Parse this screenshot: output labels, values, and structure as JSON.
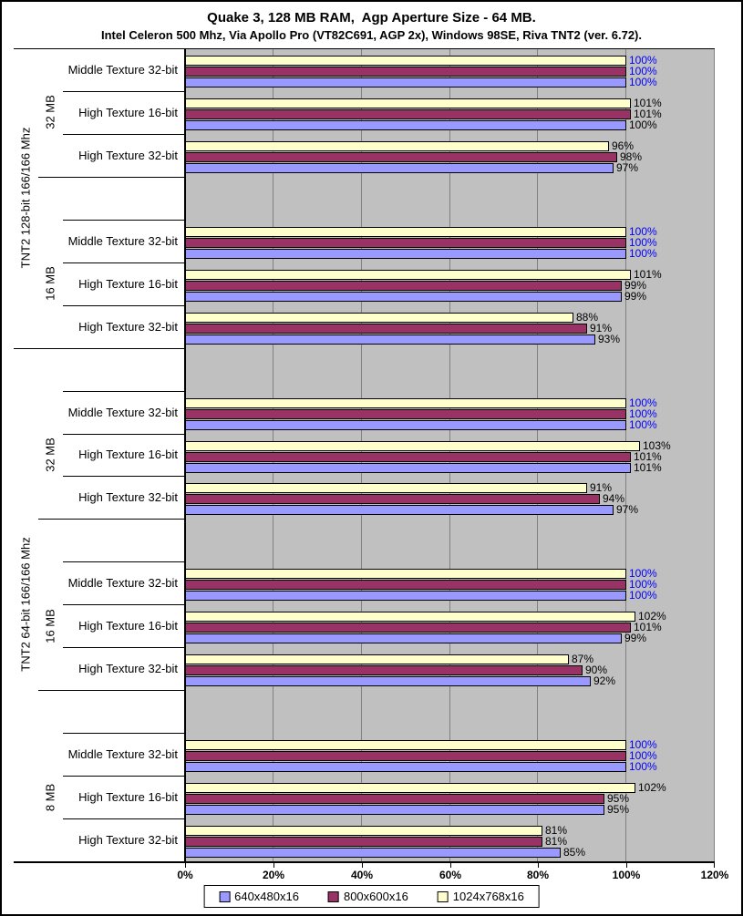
{
  "chart_data": {
    "type": "bar",
    "orientation": "horizontal",
    "title": "Quake 3, 128 MB RAM,  Agp Aperture Size - 64 MB.",
    "subtitle": "Intel Celeron 500 Mhz, Via Apollo Pro (VT82C691, AGP 2x), Windows 98SE, Riva TNT2 (ver. 6.72).",
    "xlabel": "",
    "ylabel": "",
    "xlim": [
      0,
      120
    ],
    "x_ticks": [
      "0%",
      "20%",
      "40%",
      "60%",
      "80%",
      "100%",
      "120%"
    ],
    "x_tick_values": [
      0,
      20,
      40,
      60,
      80,
      100,
      120
    ],
    "grid": true,
    "legend_position": "bottom",
    "plot_background": "#c0c0c0",
    "gridline_color": "#808080",
    "bar_border_color": "#000000",
    "baseline_label_color": "#0000ff",
    "series": [
      {
        "name": "640x480x16",
        "color": "#9999ff"
      },
      {
        "name": "800x600x16",
        "color": "#993366"
      },
      {
        "name": "1024x768x16",
        "color": "#ffffcc"
      }
    ],
    "bar_display_order_top_to_bottom": [
      "1024x768x16",
      "800x600x16",
      "640x480x16"
    ],
    "cards": [
      {
        "label": "TNT2 128-bit 166/166 Mhz",
        "memory_groups": [
          {
            "label": "32 MB",
            "rows": [
              {
                "label": "Middle Texture 32-bit",
                "values": {
                  "640x480x16": 100,
                  "800x600x16": 100,
                  "1024x768x16": 100
                },
                "label_color": "#0000ff"
              },
              {
                "label": "High Texture 16-bit",
                "values": {
                  "640x480x16": 100,
                  "800x600x16": 101,
                  "1024x768x16": 101
                }
              },
              {
                "label": "High Texture 32-bit",
                "values": {
                  "640x480x16": 97,
                  "800x600x16": 98,
                  "1024x768x16": 96
                }
              }
            ]
          },
          {
            "label": "16 MB",
            "rows": [
              {
                "label": "Middle Texture 32-bit",
                "values": {
                  "640x480x16": 100,
                  "800x600x16": 100,
                  "1024x768x16": 100
                },
                "label_color": "#0000ff"
              },
              {
                "label": "High Texture 16-bit",
                "values": {
                  "640x480x16": 99,
                  "800x600x16": 99,
                  "1024x768x16": 101
                }
              },
              {
                "label": "High Texture 32-bit",
                "values": {
                  "640x480x16": 93,
                  "800x600x16": 91,
                  "1024x768x16": 88
                }
              }
            ]
          }
        ]
      },
      {
        "label": "TNT2 64-bit 166/166 Mhz",
        "memory_groups": [
          {
            "label": "32 MB",
            "rows": [
              {
                "label": "Middle Texture 32-bit",
                "values": {
                  "640x480x16": 100,
                  "800x600x16": 100,
                  "1024x768x16": 100
                },
                "label_color": "#0000ff"
              },
              {
                "label": "High Texture 16-bit",
                "values": {
                  "640x480x16": 101,
                  "800x600x16": 101,
                  "1024x768x16": 103
                }
              },
              {
                "label": "High Texture 32-bit",
                "values": {
                  "640x480x16": 97,
                  "800x600x16": 94,
                  "1024x768x16": 91
                }
              }
            ]
          },
          {
            "label": "16 MB",
            "rows": [
              {
                "label": "Middle Texture 32-bit",
                "values": {
                  "640x480x16": 100,
                  "800x600x16": 100,
                  "1024x768x16": 100
                },
                "label_color": "#0000ff"
              },
              {
                "label": "High Texture 16-bit",
                "values": {
                  "640x480x16": 99,
                  "800x600x16": 101,
                  "1024x768x16": 102
                }
              },
              {
                "label": "High Texture 32-bit",
                "values": {
                  "640x480x16": 92,
                  "800x600x16": 90,
                  "1024x768x16": 87
                }
              }
            ]
          },
          {
            "label": "8 MB",
            "rows": [
              {
                "label": "Middle Texture 32-bit",
                "values": {
                  "640x480x16": 100,
                  "800x600x16": 100,
                  "1024x768x16": 100
                },
                "label_color": "#0000ff"
              },
              {
                "label": "High Texture 16-bit",
                "values": {
                  "640x480x16": 95,
                  "800x600x16": 95,
                  "1024x768x16": 102
                }
              },
              {
                "label": "High Texture 32-bit",
                "values": {
                  "640x480x16": 85,
                  "800x600x16": 81,
                  "1024x768x16": 81
                }
              }
            ]
          }
        ]
      }
    ]
  }
}
